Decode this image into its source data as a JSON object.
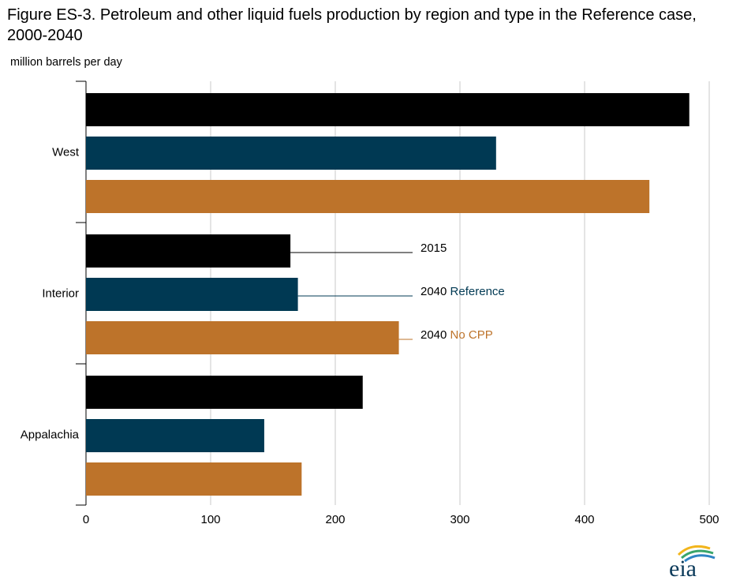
{
  "title": "Figure ES-3. Petroleum and other liquid fuels production by region and type in the Reference case, 2000-2040",
  "logo_text": "eia",
  "colors": {
    "s2015": "#000000",
    "sRef": "#003953",
    "sNoCPP": "#bd732a",
    "grid": "#c8c8c8",
    "axis": "#000000"
  },
  "chart_data": {
    "type": "bar",
    "orientation": "horizontal",
    "units_label": "million barrels per day",
    "categories": [
      "West",
      "Interior",
      "Appalachia"
    ],
    "series": [
      {
        "name": "2015",
        "values": [
          484,
          164,
          222
        ]
      },
      {
        "name": "2040 Reference",
        "values": [
          329,
          170,
          143
        ]
      },
      {
        "name": "2040 No CPP",
        "values": [
          452,
          251,
          173
        ]
      }
    ],
    "xlim": [
      0,
      500
    ],
    "xticks": [
      0,
      100,
      200,
      300,
      400,
      500
    ],
    "grid": true,
    "legend": {
      "placement": "inline-right-of-middle-group",
      "entries": [
        {
          "year": "2015",
          "label": ""
        },
        {
          "year": "2040",
          "label": "Reference"
        },
        {
          "year": "2040",
          "label": "No CPP"
        }
      ]
    }
  }
}
